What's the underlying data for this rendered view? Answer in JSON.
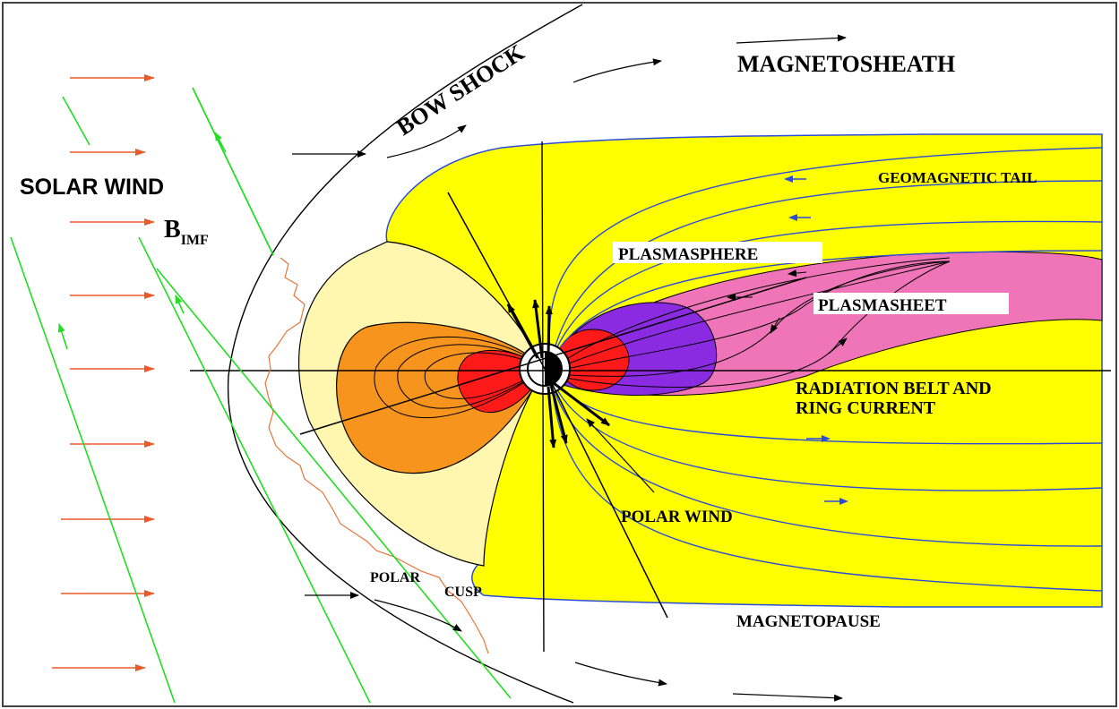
{
  "labels": {
    "bow_shock": "BOW SHOCK",
    "magnetosheath": "MAGNETOSHEATH",
    "solar_wind": "SOLAR WIND",
    "b_imf_main": "B",
    "b_imf_sub": "IMF",
    "geomagnetic_tail": "GEOMAGNETIC TAIL",
    "plasmasphere": "PLASMASPHERE",
    "plasmasheet": "PLASMASHEET",
    "radiation_belt_line1": "RADIATION BELT AND",
    "radiation_belt_line2": "RING CURRENT",
    "polar_wind": "POLAR WIND",
    "polar": "POLAR",
    "cusp": "CUSP",
    "magnetopause": "MAGNETOPAUSE"
  },
  "colors": {
    "solar_wind_arrow": "#e85a2a",
    "imf_line": "#22dd22",
    "magnetosphere_fill": "#ffff00",
    "dayside_pale": "#fff7b0",
    "dayside_orange": "#f7941d",
    "core_red": "#ff1a1a",
    "plasmasphere_purple": "#8a2be2",
    "plasmasheet_pink": "#ef74b8",
    "field_line": "#2a4bd7",
    "cusp_line": "#e8743a"
  }
}
